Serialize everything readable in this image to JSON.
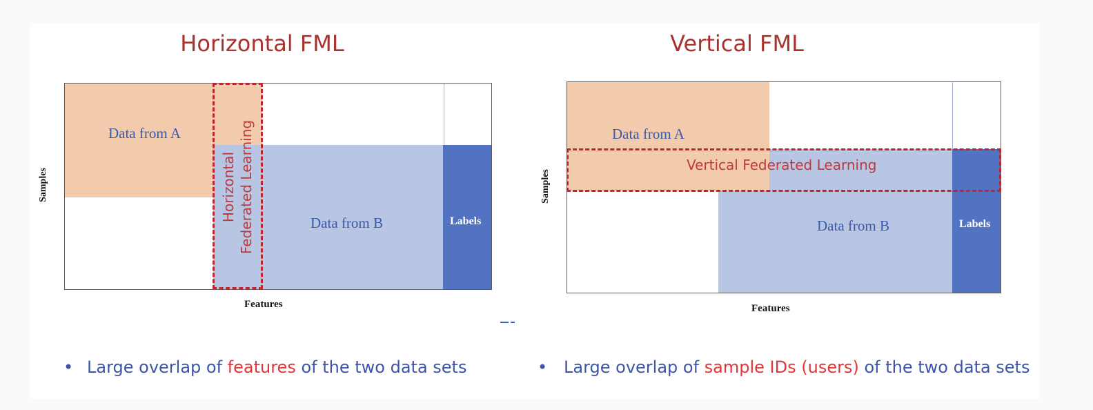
{
  "horizontal": {
    "title": "Horizontal FML",
    "data_a": "Data from A",
    "data_b": "Data from B",
    "labels": "Labels",
    "x_axis": "Features",
    "y_axis": "Samples",
    "fl_line1": "Horizontal",
    "fl_line2": "Federated Learning",
    "bullet": {
      "symbol": "•",
      "pre": "Large overlap of ",
      "highlight": "features",
      "post": " of the two data sets"
    }
  },
  "vertical": {
    "title": "Vertical FML",
    "data_a": "Data from A",
    "data_b": "Data from B",
    "labels": "Labels",
    "x_axis": "Features",
    "y_axis": "Samples",
    "fl_label": "Vertical Federated Learning",
    "bullet": {
      "symbol": "•",
      "pre": "Large overlap of ",
      "highlight": "sample IDs (users)",
      "post": " of the two data sets"
    }
  },
  "colors": {
    "title": "#a8322d",
    "data_a_fill": "#f2cbad",
    "data_b_fill": "#b8c6e4",
    "labels_fill": "#5273c2",
    "dash_border": "#c0262c",
    "bullet_text": "#3d55a7",
    "highlight_text": "#e0363a"
  }
}
